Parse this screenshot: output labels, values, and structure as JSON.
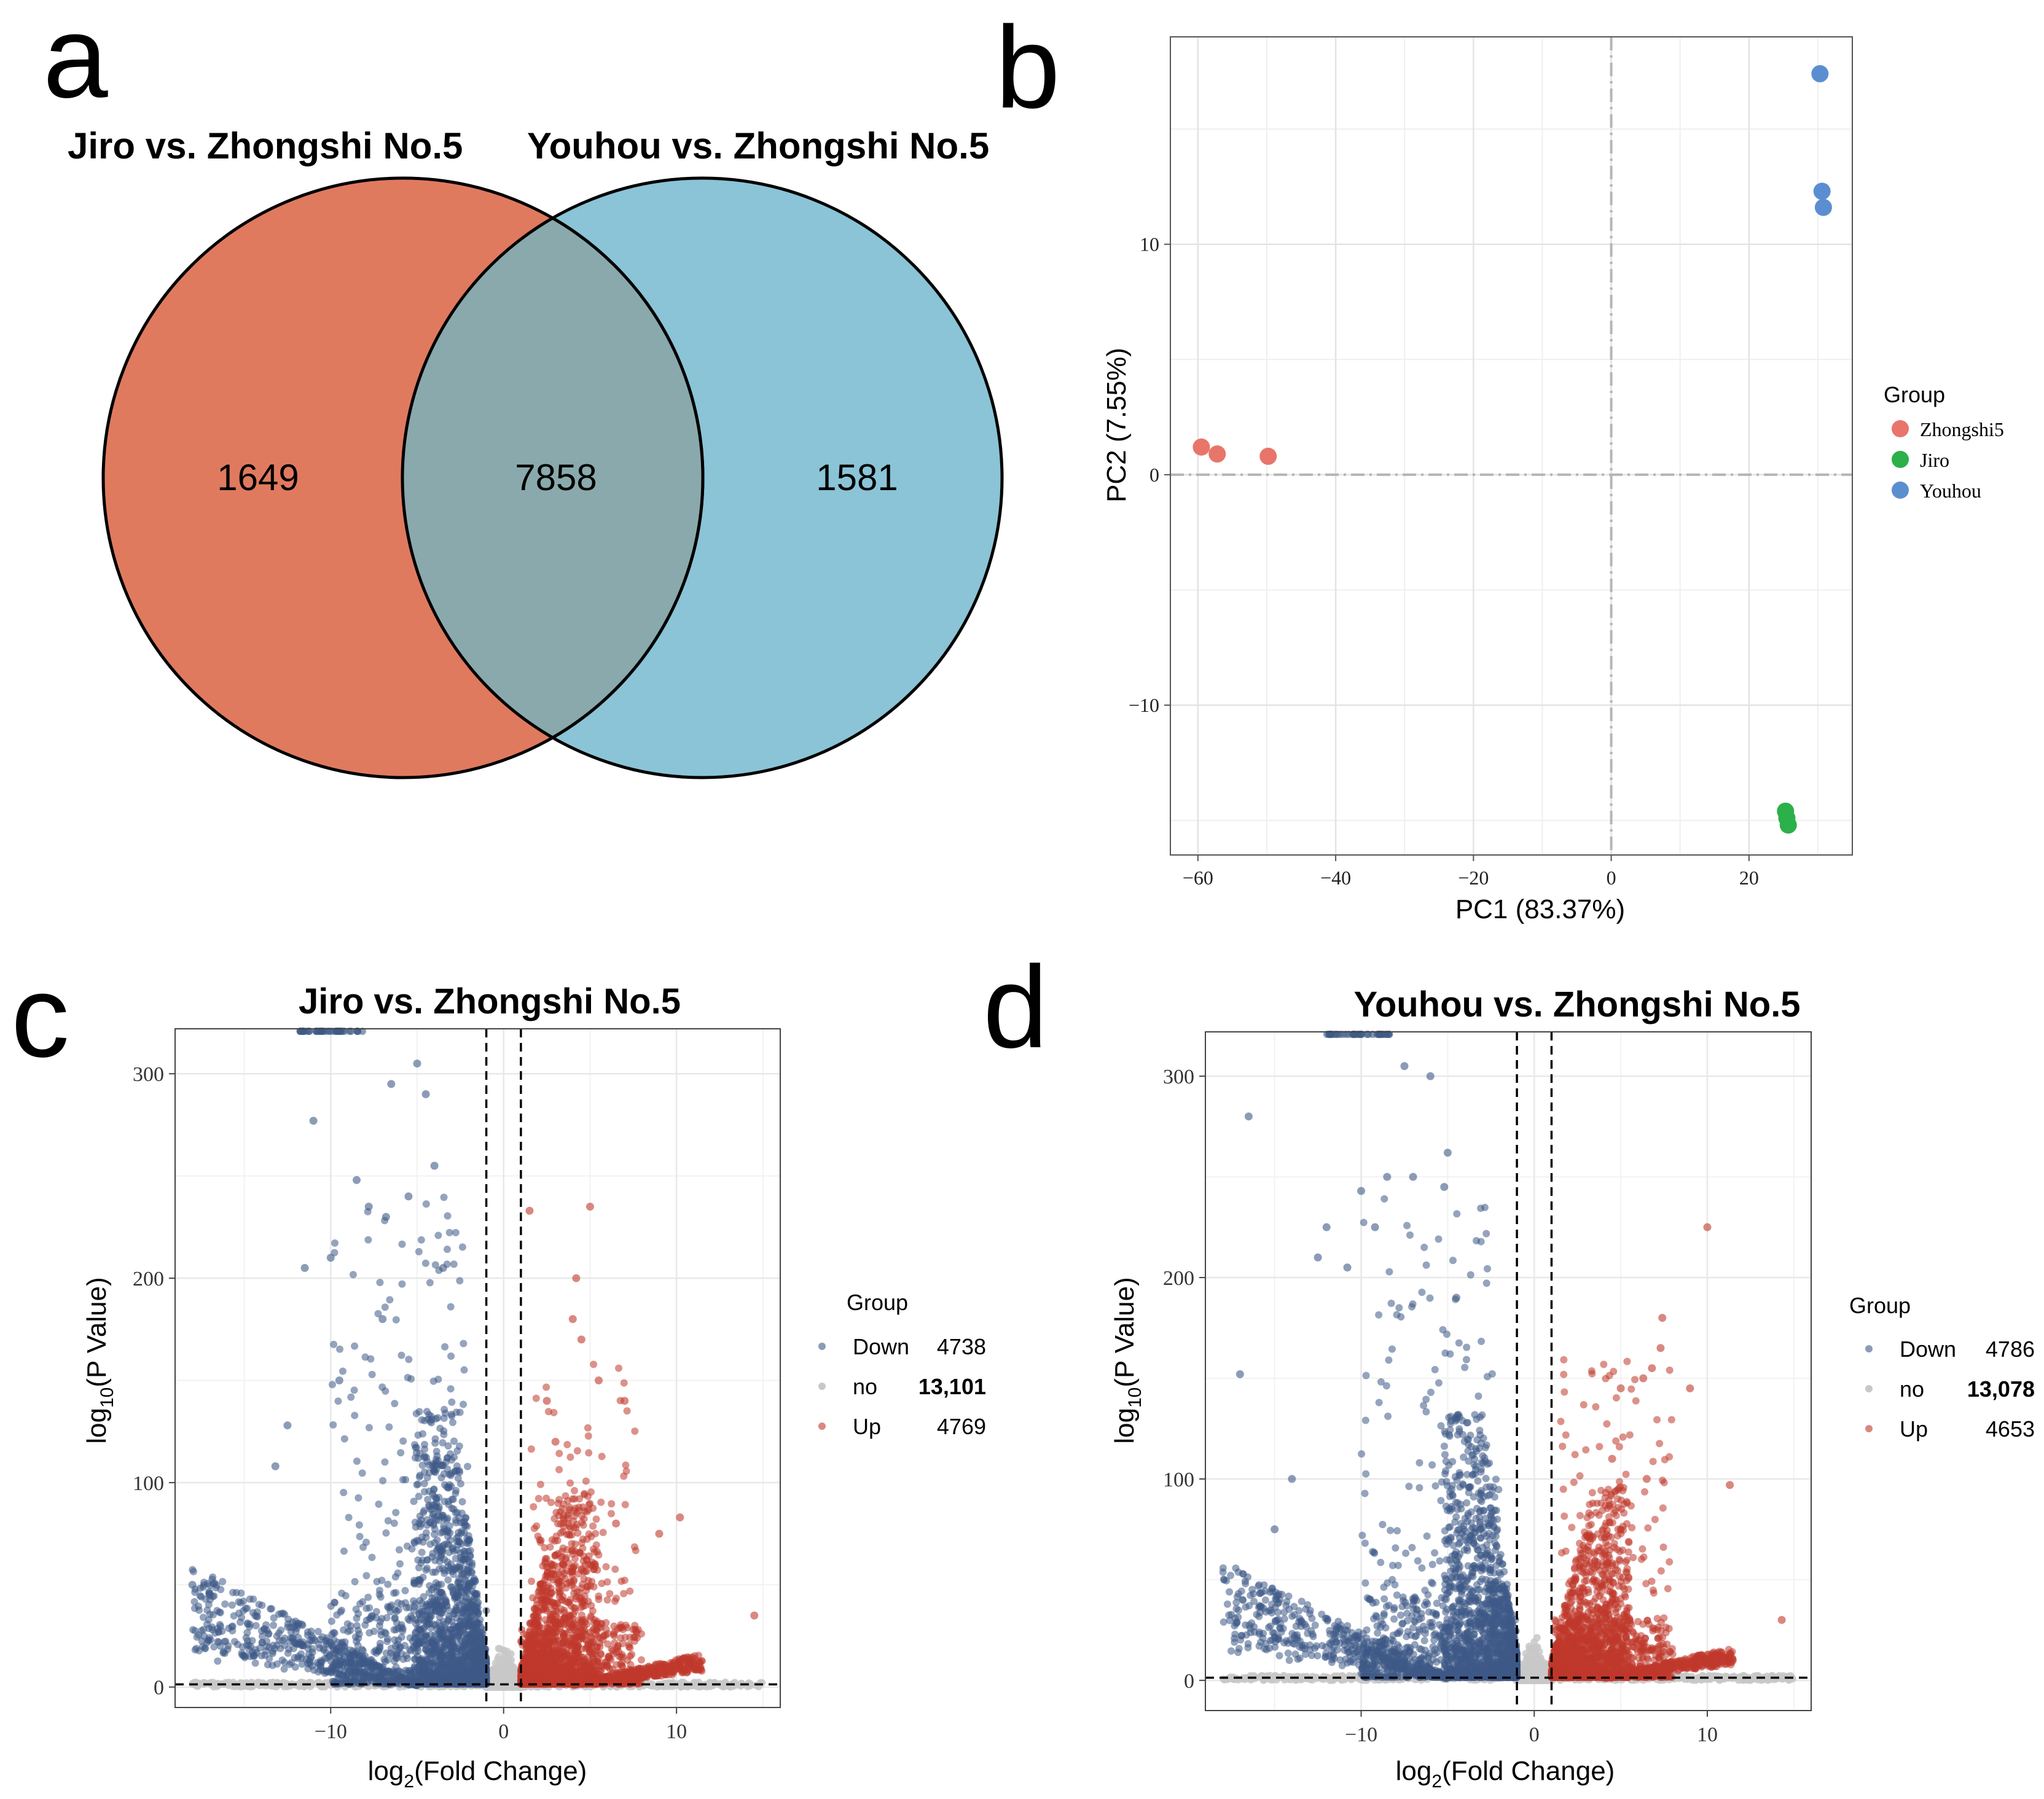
{
  "panels": {
    "a": {
      "letter": "a"
    },
    "b": {
      "letter": "b"
    },
    "c": {
      "letter": "c"
    },
    "d": {
      "letter": "d"
    }
  },
  "chart_data": [
    {
      "id": "venn",
      "type": "venn",
      "sets": [
        {
          "name": "Jiro vs. Zhongshi No.5",
          "only": 1649,
          "color": "#E07A5F"
        },
        {
          "name": "Youhou vs. Zhongshi No.5",
          "only": 1581,
          "color": "#8AC4D6"
        }
      ],
      "overlap": 7858,
      "overlap_color": "#8AA9AD",
      "labels": {
        "left_only": "1649",
        "overlap": "7858",
        "right_only": "1581"
      }
    },
    {
      "id": "pca",
      "type": "scatter",
      "xlabel": "PC1 (83.37%)",
      "ylabel": "PC2 (7.55%)",
      "xlim": [
        -64,
        35
      ],
      "ylim": [
        -16.5,
        19
      ],
      "xticks": [
        -60,
        -40,
        -20,
        0,
        20
      ],
      "yticks": [
        -10,
        0,
        10
      ],
      "legend_title": "Group",
      "series": [
        {
          "name": "Zhongshi5",
          "color": "#E8756A",
          "points": [
            [
              -59.5,
              1.2
            ],
            [
              -57.2,
              0.9
            ],
            [
              -49.8,
              0.8
            ]
          ]
        },
        {
          "name": "Jiro",
          "color": "#2CB04A",
          "points": [
            [
              25.3,
              -14.6
            ],
            [
              25.5,
              -14.9
            ],
            [
              25.7,
              -15.2
            ]
          ]
        },
        {
          "name": "Youhou",
          "color": "#5B8ED0",
          "points": [
            [
              30.3,
              17.4
            ],
            [
              30.6,
              12.3
            ],
            [
              30.8,
              11.6
            ]
          ]
        }
      ]
    },
    {
      "id": "volcano_jiro",
      "type": "scatter",
      "title": "Jiro vs. Zhongshi No.5",
      "xlabel_main": "log",
      "xlabel_sub": "2",
      "xlabel_rest": "(Fold Change)",
      "ylabel_main": "log",
      "ylabel_sub": "10",
      "ylabel_rest": "(P Value)",
      "xlim": [
        -19,
        16
      ],
      "ylim": [
        -10,
        322
      ],
      "xticks": [
        -10,
        0,
        10
      ],
      "yticks": [
        0,
        100,
        200,
        300
      ],
      "thresholds": {
        "fc": 1,
        "p": 1.3
      },
      "legend_title": "Group",
      "groups": [
        {
          "name": "Down",
          "count": "4738",
          "bold": false,
          "color": "#3E5A86"
        },
        {
          "name": "no",
          "count": "13,101",
          "bold": true,
          "color": "#C8C8C8"
        },
        {
          "name": "Up",
          "count": "4769",
          "bold": false,
          "color": "#C0392B"
        }
      ],
      "highlight_points": {
        "down": [
          [
            -18,
            50
          ],
          [
            -17,
            45
          ],
          [
            -12.5,
            128
          ],
          [
            -13.2,
            108
          ],
          [
            -11.5,
            205
          ],
          [
            -11,
            277
          ],
          [
            -9.5,
            150
          ],
          [
            -8.5,
            248
          ],
          [
            -7.8,
            235
          ],
          [
            -6.8,
            230
          ],
          [
            -6.5,
            295
          ],
          [
            -5.5,
            240
          ],
          [
            -5,
            305
          ],
          [
            -4.5,
            290
          ],
          [
            -4,
            255
          ],
          [
            -3.5,
            205
          ],
          [
            -7,
            180
          ],
          [
            -10,
            210
          ]
        ],
        "up": [
          [
            1.5,
            233
          ],
          [
            2.5,
            140
          ],
          [
            3,
            120
          ],
          [
            4,
            180
          ],
          [
            4.2,
            200
          ],
          [
            5,
            235
          ],
          [
            6.5,
            80
          ],
          [
            7,
            140
          ],
          [
            9,
            75
          ],
          [
            10.2,
            83
          ],
          [
            14.5,
            35
          ],
          [
            5.5,
            150
          ],
          [
            4.5,
            170
          ]
        ]
      }
    },
    {
      "id": "volcano_youhou",
      "type": "scatter",
      "title": "Youhou vs. Zhongshi No.5",
      "xlabel_main": "log",
      "xlabel_sub": "2",
      "xlabel_rest": "(Fold Change)",
      "ylabel_main": "log",
      "ylabel_sub": "10",
      "ylabel_rest": "(P Value)",
      "xlim": [
        -19,
        16
      ],
      "ylim": [
        -15,
        322
      ],
      "xticks": [
        -10,
        0,
        10
      ],
      "yticks": [
        0,
        100,
        200,
        300
      ],
      "thresholds": {
        "fc": 1,
        "p": 1.3
      },
      "legend_title": "Group",
      "groups": [
        {
          "name": "Down",
          "count": "4786",
          "bold": false,
          "color": "#3E5A86"
        },
        {
          "name": "no",
          "count": "13,078",
          "bold": true,
          "color": "#C8C8C8"
        },
        {
          "name": "Up",
          "count": "4653",
          "bold": false,
          "color": "#C0392B"
        }
      ],
      "highlight_points": {
        "down": [
          [
            -16.5,
            280
          ],
          [
            -17,
            152
          ],
          [
            -15,
            75
          ],
          [
            -14,
            100
          ],
          [
            -12.5,
            210
          ],
          [
            -12,
            225
          ],
          [
            -10,
            243
          ],
          [
            -9.2,
            225
          ],
          [
            -8.5,
            250
          ],
          [
            -7.5,
            305
          ],
          [
            -7,
            250
          ],
          [
            -6,
            300
          ],
          [
            -5.2,
            245
          ],
          [
            -5,
            262
          ],
          [
            -4.5,
            190
          ],
          [
            -10.8,
            205
          ]
        ],
        "up": [
          [
            5,
            145
          ],
          [
            6.3,
            150
          ],
          [
            6.8,
            155
          ],
          [
            7.4,
            180
          ],
          [
            7.3,
            165
          ],
          [
            9,
            145
          ],
          [
            10,
            225
          ],
          [
            11.3,
            97
          ],
          [
            14.3,
            30
          ],
          [
            4.5,
            110
          ],
          [
            6.5,
            100
          ]
        ]
      }
    }
  ]
}
